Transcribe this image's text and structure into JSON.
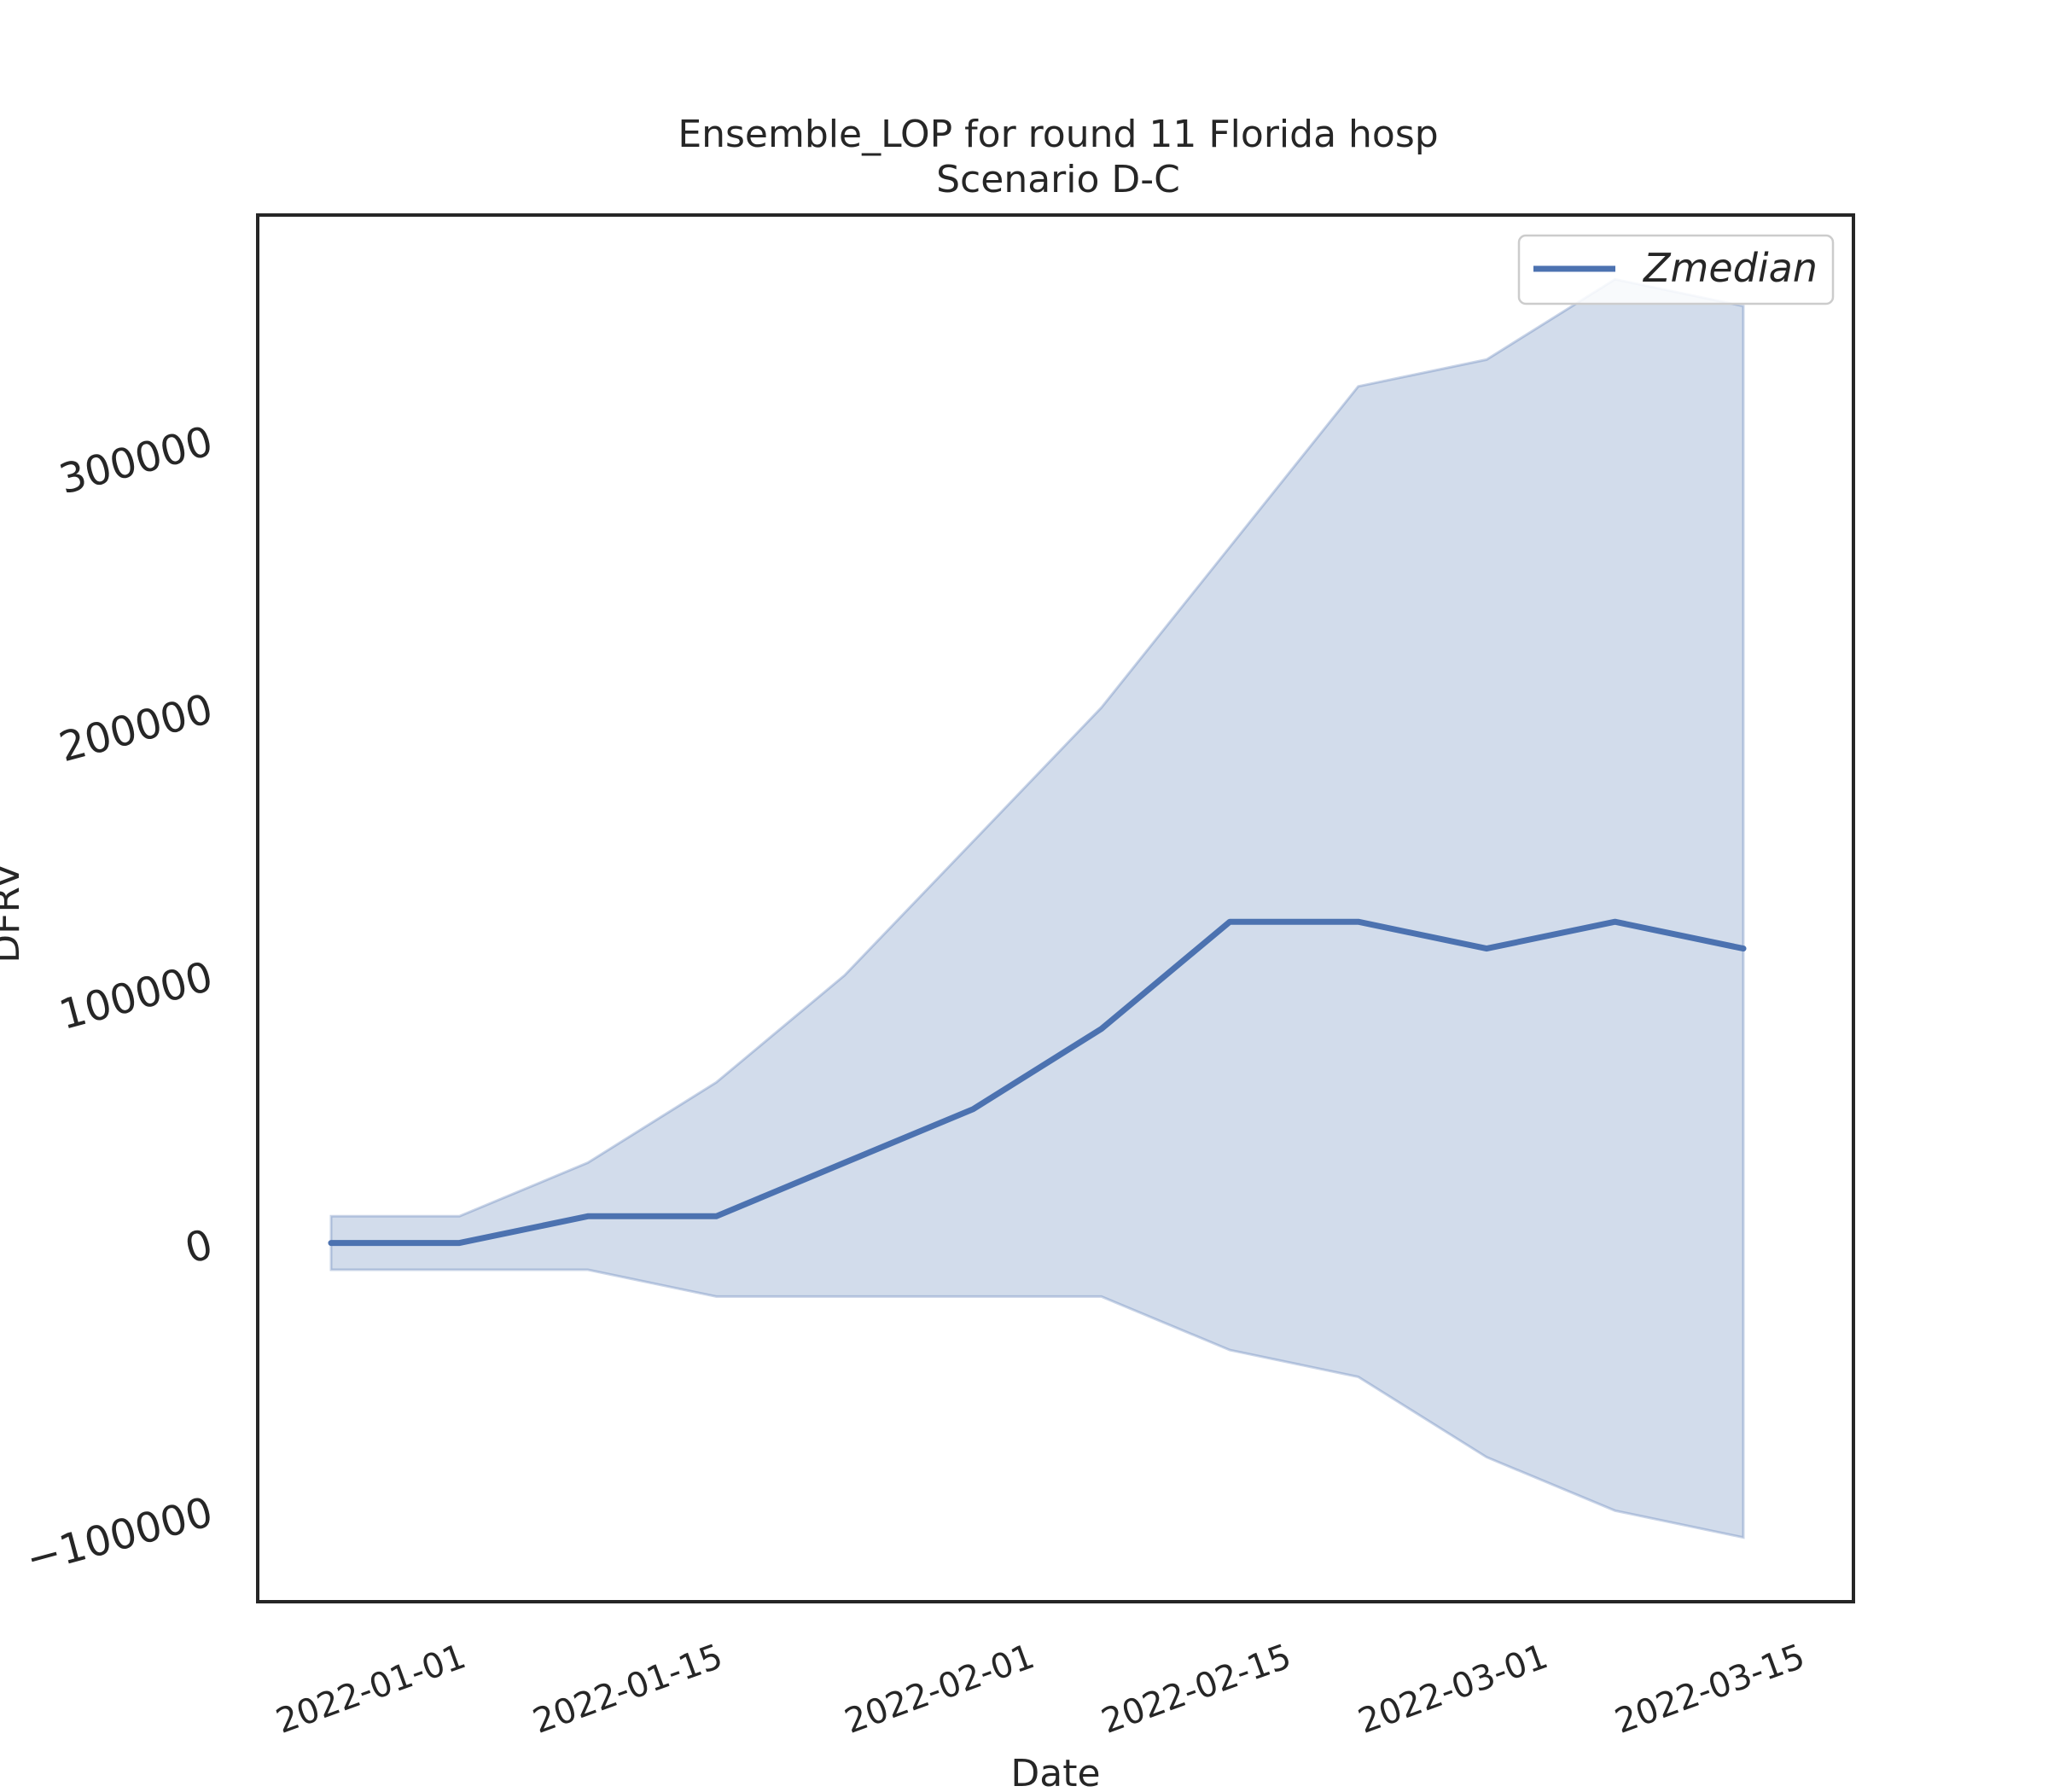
{
  "chart_data": {
    "type": "line",
    "title": "Ensemble_LOP for round 11 Florida hosp",
    "subtitle": "Scenario D-C",
    "xlabel": "Date",
    "ylabel": "DFRV",
    "x": [
      "2021-12-25",
      "2022-01-01",
      "2022-01-08",
      "2022-01-15",
      "2022-01-22",
      "2022-01-29",
      "2022-02-05",
      "2022-02-12",
      "2022-02-19",
      "2022-02-26",
      "2022-03-05",
      "2022-03-12"
    ],
    "x_ticks": [
      "2022-01-01",
      "2022-01-15",
      "2022-02-01",
      "2022-02-15",
      "2022-03-01",
      "2022-03-15"
    ],
    "y_ticks": [
      -100000,
      0,
      100000,
      200000,
      300000
    ],
    "y_tick_labels": [
      "−100000",
      "0",
      "100000",
      "200000",
      "300000"
    ],
    "xlim": [
      "2021-12-21",
      "2022-03-18"
    ],
    "ylim": [
      -134000,
      384000
    ],
    "grid": false,
    "legend_position": "upper right",
    "line_color": "#4c72b0",
    "band_color": "#4c72b0",
    "series": [
      {
        "name": "Zmedian",
        "values": [
          0,
          0,
          10000,
          10000,
          30000,
          50000,
          80000,
          120000,
          120000,
          110000,
          120000,
          110000
        ]
      }
    ],
    "band": {
      "lower": [
        -10000,
        -10000,
        -10000,
        -20000,
        -20000,
        -20000,
        -20000,
        -40000,
        -50000,
        -80000,
        -100000,
        -110000
      ],
      "upper": [
        10000,
        10000,
        30000,
        60000,
        100000,
        150000,
        200000,
        260000,
        320000,
        330000,
        360000,
        350000
      ]
    }
  }
}
